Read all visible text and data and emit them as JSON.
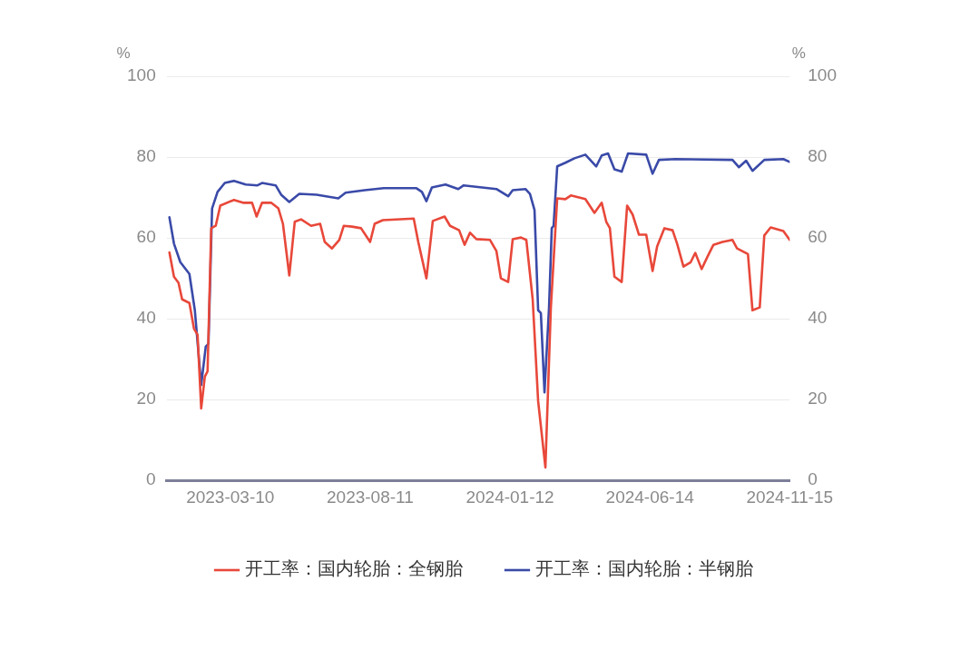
{
  "chart_data": {
    "type": "line",
    "ylabel": "%",
    "y2label": "%",
    "xlim": [
      "2022-12-30",
      "2024-11-15"
    ],
    "xticks": [
      "2023-03-10",
      "2023-08-11",
      "2024-01-12",
      "2024-06-14",
      "2024-11-15"
    ],
    "ylim": [
      0,
      100
    ],
    "yticks": [
      0,
      20,
      40,
      60,
      80,
      100
    ],
    "y2lim": [
      0,
      100
    ],
    "y2ticks": [
      0,
      20,
      40,
      60,
      80,
      100
    ],
    "grid": "y",
    "legend": "bottom",
    "marker": "none",
    "line_style": "solid",
    "series": [
      {
        "name": "开工率：国内轮胎：全钢胎",
        "color": "#e8483a",
        "x": [
          "2023-01-02",
          "2023-01-07",
          "2023-01-12",
          "2023-01-16",
          "2023-01-24",
          "2023-01-29",
          "2023-02-02",
          "2023-02-06",
          "2023-02-10",
          "2023-02-13",
          "2023-02-17",
          "2023-02-22",
          "2023-02-27",
          "2023-03-14",
          "2023-03-24",
          "2023-04-03",
          "2023-04-08",
          "2023-04-14",
          "2023-04-24",
          "2023-05-02",
          "2023-05-07",
          "2023-05-14",
          "2023-05-20",
          "2023-05-27",
          "2023-06-07",
          "2023-06-17",
          "2023-06-22",
          "2023-06-30",
          "2023-07-08",
          "2023-07-13",
          "2023-07-22",
          "2023-08-01",
          "2023-08-11",
          "2023-08-16",
          "2023-08-25",
          "2023-09-28",
          "2023-10-03",
          "2023-10-12",
          "2023-10-19",
          "2023-11-01",
          "2023-11-07",
          "2023-11-17",
          "2023-11-23",
          "2023-11-29",
          "2023-12-06",
          "2023-12-21",
          "2023-12-28",
          "2024-01-02",
          "2024-01-10",
          "2024-01-15",
          "2024-01-24",
          "2024-01-30",
          "2024-02-06",
          "2024-02-12",
          "2024-02-20",
          "2024-02-26",
          "2024-03-04",
          "2024-03-13",
          "2024-03-19",
          "2024-04-04",
          "2024-04-14",
          "2024-04-22",
          "2024-04-27",
          "2024-05-01",
          "2024-05-06",
          "2024-05-14",
          "2024-05-20",
          "2024-05-26",
          "2024-06-02",
          "2024-06-10",
          "2024-06-17",
          "2024-06-22",
          "2024-06-30",
          "2024-07-09",
          "2024-07-14",
          "2024-07-21",
          "2024-07-29",
          "2024-08-03",
          "2024-08-10",
          "2024-08-17",
          "2024-08-23",
          "2024-09-02",
          "2024-09-13",
          "2024-09-18",
          "2024-09-30",
          "2024-10-05",
          "2024-10-13",
          "2024-10-18",
          "2024-10-25",
          "2024-11-08",
          "2024-11-15"
        ],
        "values": [
          56.4,
          50.4,
          48.9,
          44.8,
          43.9,
          37.6,
          36,
          17.8,
          25.7,
          27,
          62.4,
          63,
          68,
          69.4,
          68.7,
          68.7,
          65.3,
          68.7,
          68.7,
          67.3,
          63.5,
          50.7,
          64,
          64.6,
          63,
          63.5,
          59,
          57.4,
          59.5,
          63,
          62.8,
          62.4,
          59,
          63.5,
          64.4,
          64.8,
          59,
          50,
          64.2,
          65.3,
          63,
          61.9,
          58.3,
          61.3,
          59.7,
          59.5,
          56.8,
          50,
          49.1,
          59.7,
          60.1,
          59.5,
          44.8,
          19.6,
          3.2,
          42.8,
          69.8,
          69.6,
          70.5,
          69.6,
          66.2,
          68.7,
          64,
          62.4,
          50.4,
          49.1,
          68,
          65.8,
          60.8,
          60.8,
          51.8,
          57.9,
          62.4,
          61.9,
          58.6,
          52.9,
          54,
          56.3,
          52.3,
          55.6,
          58.3,
          59,
          59.5,
          57.4,
          56,
          42.1,
          42.8,
          60.6,
          62.6,
          61.7,
          59.5
        ]
      },
      {
        "name": "开工率：国内轮胎：半钢胎",
        "color": "#3a4aa8",
        "x": [
          "2023-01-02",
          "2023-01-07",
          "2023-01-14",
          "2023-01-24",
          "2023-01-30",
          "2023-02-06",
          "2023-02-11",
          "2023-02-14",
          "2023-02-18",
          "2023-02-24",
          "2023-03-04",
          "2023-03-14",
          "2023-03-27",
          "2023-04-09",
          "2023-04-14",
          "2023-04-29",
          "2023-05-05",
          "2023-05-14",
          "2023-05-25",
          "2023-06-13",
          "2023-07-07",
          "2023-07-15",
          "2023-08-05",
          "2023-08-26",
          "2023-10-01",
          "2023-10-07",
          "2023-10-12",
          "2023-10-18",
          "2023-11-02",
          "2023-11-16",
          "2023-11-22",
          "2023-12-28",
          "2024-01-10",
          "2024-01-15",
          "2024-01-29",
          "2024-02-03",
          "2024-02-08",
          "2024-02-12",
          "2024-02-15",
          "2024-02-19",
          "2024-02-24",
          "2024-02-27",
          "2024-02-29",
          "2024-03-04",
          "2024-03-13",
          "2024-03-23",
          "2024-04-04",
          "2024-04-16",
          "2024-04-22",
          "2024-04-29",
          "2024-05-06",
          "2024-05-14",
          "2024-05-21",
          "2024-06-10",
          "2024-06-17",
          "2024-06-24",
          "2024-07-12",
          "2024-09-13",
          "2024-09-20",
          "2024-09-28",
          "2024-10-05",
          "2024-10-18",
          "2024-11-08",
          "2024-11-15"
        ],
        "values": [
          65.1,
          58.6,
          54,
          51.1,
          42.1,
          23.6,
          33.1,
          33.8,
          67.3,
          71.4,
          73.6,
          74.1,
          73.2,
          73,
          73.6,
          73,
          70.7,
          68.9,
          70.9,
          70.7,
          69.8,
          71.2,
          71.8,
          72.3,
          72.3,
          71.4,
          69.1,
          72.5,
          73.2,
          72.1,
          73,
          72.1,
          70.3,
          71.8,
          72.1,
          70.9,
          66.9,
          42.1,
          41.4,
          21.8,
          42.8,
          62.4,
          63,
          77.7,
          78.6,
          79.7,
          80.6,
          77.7,
          80.4,
          80.9,
          77,
          76.4,
          80.9,
          80.6,
          75.9,
          79.3,
          79.5,
          79.3,
          77.5,
          79.1,
          76.6,
          79.3,
          79.5,
          78.8
        ]
      }
    ]
  }
}
